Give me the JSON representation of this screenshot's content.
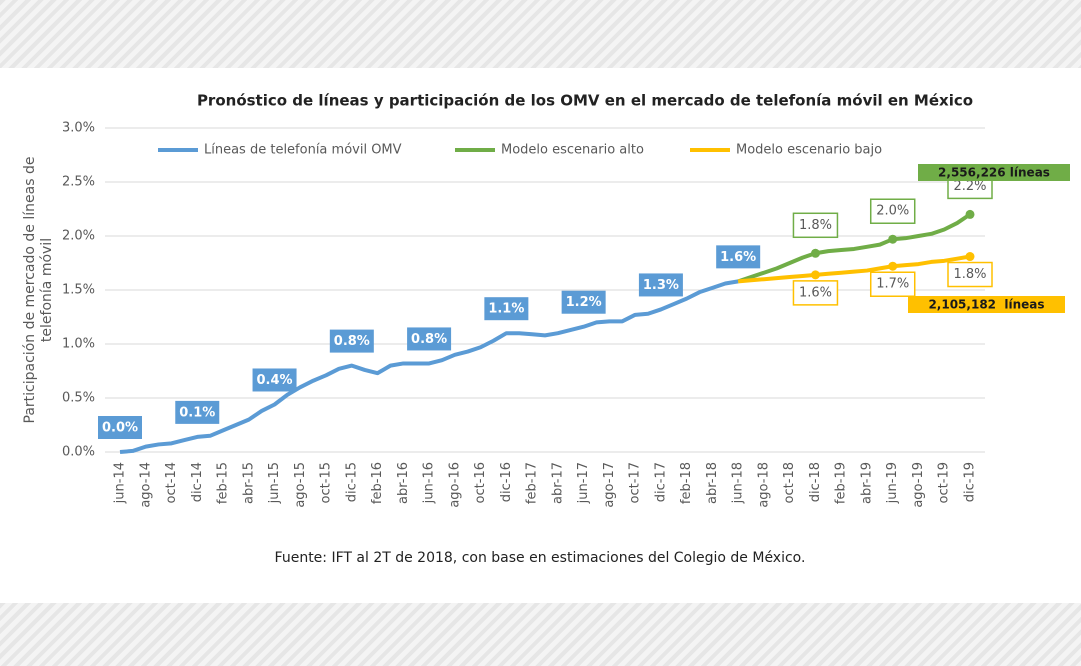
{
  "chart_data": {
    "type": "line",
    "title": "Pronóstico de líneas y participación de los OMV en el mercado de telefonía móvil en México",
    "ylabel": [
      "Participación de mercado de líneas de",
      "telefonía móvil"
    ],
    "source": "Fuente: IFT al 2T de 2018, con base en estimaciones del Colegio de México.",
    "categories": [
      "jun-14",
      null,
      "ago-14",
      null,
      "oct-14",
      null,
      "dic-14",
      null,
      "feb-15",
      null,
      "abr-15",
      null,
      "jun-15",
      null,
      "ago-15",
      null,
      "oct-15",
      null,
      "dic-15",
      null,
      "feb-16",
      null,
      "abr-16",
      null,
      "jun-16",
      null,
      "ago-16",
      null,
      "oct-16",
      null,
      "dic-16",
      null,
      "feb-17",
      null,
      "abr-17",
      null,
      "jun-17",
      null,
      "ago-17",
      null,
      "oct-17",
      null,
      "dic-17",
      null,
      "feb-18",
      null,
      "abr-18",
      null,
      "jun-18",
      null,
      "ago-18",
      null,
      "oct-18",
      null,
      "dic-18",
      null,
      "feb-19",
      null,
      "abr-19",
      null,
      "jun-19",
      null,
      "ago-19",
      null,
      "oct-19",
      null,
      "dic-19"
    ],
    "series": [
      {
        "name": "Líneas de telefonía móvil OMV",
        "color": "#5b9bd5",
        "values": [
          0.0,
          0.01,
          0.05,
          0.07,
          0.08,
          0.11,
          0.14,
          0.15,
          0.2,
          0.25,
          0.3,
          0.38,
          0.44,
          0.53,
          0.6,
          0.66,
          0.71,
          0.77,
          0.8,
          0.76,
          0.73,
          0.8,
          0.82,
          0.82,
          0.82,
          0.85,
          0.9,
          0.93,
          0.97,
          1.03,
          1.1,
          1.1,
          1.09,
          1.08,
          1.1,
          1.13,
          1.16,
          1.2,
          1.21,
          1.21,
          1.27,
          1.28,
          1.32,
          1.37,
          1.42,
          1.48,
          1.52,
          1.56,
          1.58,
          null,
          null,
          null,
          null,
          null,
          null,
          null,
          null,
          null,
          null,
          null,
          null,
          null,
          null,
          null,
          null,
          null,
          null
        ],
        "value_labels": [
          "0.0%",
          null,
          null,
          null,
          null,
          null,
          "0.1%",
          null,
          null,
          null,
          null,
          null,
          "0.4%",
          null,
          null,
          null,
          null,
          null,
          "0.8%",
          null,
          null,
          null,
          null,
          null,
          "0.8%",
          null,
          null,
          null,
          null,
          null,
          "1.1%",
          null,
          null,
          null,
          null,
          null,
          "1.2%",
          null,
          null,
          null,
          null,
          null,
          "1.3%",
          null,
          null,
          null,
          null,
          null,
          "1.6%",
          null,
          null,
          null,
          null,
          null,
          null,
          null,
          null,
          null,
          null,
          null,
          null,
          null,
          null,
          null,
          null,
          null,
          null
        ]
      },
      {
        "name": "Modelo escenario alto",
        "color": "#70ad47",
        "values": [
          null,
          null,
          null,
          null,
          null,
          null,
          null,
          null,
          null,
          null,
          null,
          null,
          null,
          null,
          null,
          null,
          null,
          null,
          null,
          null,
          null,
          null,
          null,
          null,
          null,
          null,
          null,
          null,
          null,
          null,
          null,
          null,
          null,
          null,
          null,
          null,
          null,
          null,
          null,
          null,
          null,
          null,
          null,
          null,
          null,
          null,
          null,
          null,
          1.58,
          1.62,
          1.66,
          1.7,
          1.75,
          1.8,
          1.84,
          1.86,
          1.87,
          1.88,
          1.9,
          1.92,
          1.97,
          1.98,
          2.0,
          2.02,
          2.06,
          2.12,
          2.2
        ],
        "value_labels": [
          null,
          null,
          null,
          null,
          null,
          null,
          null,
          null,
          null,
          null,
          null,
          null,
          null,
          null,
          null,
          null,
          null,
          null,
          null,
          null,
          null,
          null,
          null,
          null,
          null,
          null,
          null,
          null,
          null,
          null,
          null,
          null,
          null,
          null,
          null,
          null,
          null,
          null,
          null,
          null,
          null,
          null,
          null,
          null,
          null,
          null,
          null,
          null,
          null,
          null,
          null,
          null,
          null,
          null,
          "1.8%",
          null,
          null,
          null,
          null,
          null,
          "2.0%",
          null,
          null,
          null,
          null,
          null,
          "2.2%"
        ]
      },
      {
        "name": "Modelo escenario bajo",
        "color": "#ffc000",
        "values": [
          null,
          null,
          null,
          null,
          null,
          null,
          null,
          null,
          null,
          null,
          null,
          null,
          null,
          null,
          null,
          null,
          null,
          null,
          null,
          null,
          null,
          null,
          null,
          null,
          null,
          null,
          null,
          null,
          null,
          null,
          null,
          null,
          null,
          null,
          null,
          null,
          null,
          null,
          null,
          null,
          null,
          null,
          null,
          null,
          null,
          null,
          null,
          null,
          1.58,
          1.59,
          1.6,
          1.61,
          1.62,
          1.63,
          1.64,
          1.65,
          1.66,
          1.67,
          1.68,
          1.7,
          1.72,
          1.73,
          1.74,
          1.76,
          1.77,
          1.79,
          1.81
        ],
        "value_labels": [
          null,
          null,
          null,
          null,
          null,
          null,
          null,
          null,
          null,
          null,
          null,
          null,
          null,
          null,
          null,
          null,
          null,
          null,
          null,
          null,
          null,
          null,
          null,
          null,
          null,
          null,
          null,
          null,
          null,
          null,
          null,
          null,
          null,
          null,
          null,
          null,
          null,
          null,
          null,
          null,
          null,
          null,
          null,
          null,
          null,
          null,
          null,
          null,
          null,
          null,
          null,
          null,
          null,
          null,
          "1.6%",
          null,
          null,
          null,
          null,
          null,
          "1.7%",
          null,
          null,
          null,
          null,
          null,
          "1.8%"
        ]
      }
    ],
    "annotations": [
      "2,556,226 líneas",
      "2,105,182  líneas"
    ],
    "ylim": [
      0,
      3
    ],
    "yticks": [
      {
        "value": 0,
        "label": "0.0%"
      },
      {
        "value": 0.5,
        "label": "0.5%"
      },
      {
        "value": 1,
        "label": "1.0%"
      },
      {
        "value": 1.5,
        "label": "1.5%"
      },
      {
        "value": 2,
        "label": "2.0%"
      },
      {
        "value": 2.5,
        "label": "2.5%"
      },
      {
        "value": 3,
        "label": "3.0%"
      }
    ],
    "grid": true,
    "legend": "top"
  }
}
